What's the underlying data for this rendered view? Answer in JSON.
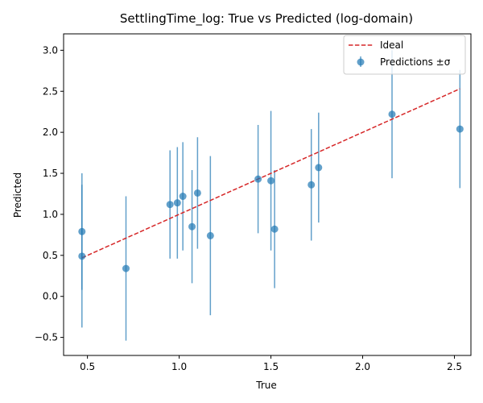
{
  "chart_data": {
    "type": "scatter",
    "title": "SettlingTime_log: True vs Predicted (log-domain)",
    "xlabel": "True",
    "ylabel": "Predicted",
    "xlim": [
      0.37,
      2.59
    ],
    "ylim": [
      -0.72,
      3.2
    ],
    "xticks": [
      0.5,
      1.0,
      1.5,
      2.0,
      2.5
    ],
    "yticks": [
      -0.5,
      0.0,
      0.5,
      1.0,
      1.5,
      2.0,
      2.5,
      3.0
    ],
    "xtick_labels": [
      "0.5",
      "1.0",
      "1.5",
      "2.0",
      "2.5"
    ],
    "ytick_labels": [
      "−0.5",
      "0.0",
      "0.5",
      "1.0",
      "1.5",
      "2.0",
      "2.5",
      "3.0"
    ],
    "grid": false,
    "legend": {
      "placement": "top-right",
      "entries": [
        "Ideal",
        "Predictions ±σ"
      ]
    },
    "colors": {
      "points": "#1f77b4",
      "ideal": "#d62728"
    },
    "ideal_line": {
      "name": "Ideal",
      "x": [
        0.47,
        2.53
      ],
      "y": [
        0.47,
        2.53
      ]
    },
    "series": [
      {
        "name": "Predictions ±σ",
        "points": [
          {
            "x": 0.47,
            "y": 0.79,
            "sigma": 0.71
          },
          {
            "x": 0.47,
            "y": 0.49,
            "sigma": 0.87
          },
          {
            "x": 0.71,
            "y": 0.34,
            "sigma": 0.88
          },
          {
            "x": 0.95,
            "y": 1.12,
            "sigma": 0.66
          },
          {
            "x": 0.99,
            "y": 1.14,
            "sigma": 0.68
          },
          {
            "x": 1.02,
            "y": 1.22,
            "sigma": 0.66
          },
          {
            "x": 1.07,
            "y": 0.85,
            "sigma": 0.69
          },
          {
            "x": 1.1,
            "y": 1.26,
            "sigma": 0.68
          },
          {
            "x": 1.17,
            "y": 0.74,
            "sigma": 0.97
          },
          {
            "x": 1.43,
            "y": 1.43,
            "sigma": 0.66
          },
          {
            "x": 1.5,
            "y": 1.41,
            "sigma": 0.85
          },
          {
            "x": 1.52,
            "y": 0.82,
            "sigma": 0.72
          },
          {
            "x": 1.72,
            "y": 1.36,
            "sigma": 0.68
          },
          {
            "x": 1.76,
            "y": 1.57,
            "sigma": 0.67
          },
          {
            "x": 2.16,
            "y": 2.22,
            "sigma": 0.78
          },
          {
            "x": 2.53,
            "y": 2.04,
            "sigma": 0.72
          }
        ]
      }
    ]
  }
}
